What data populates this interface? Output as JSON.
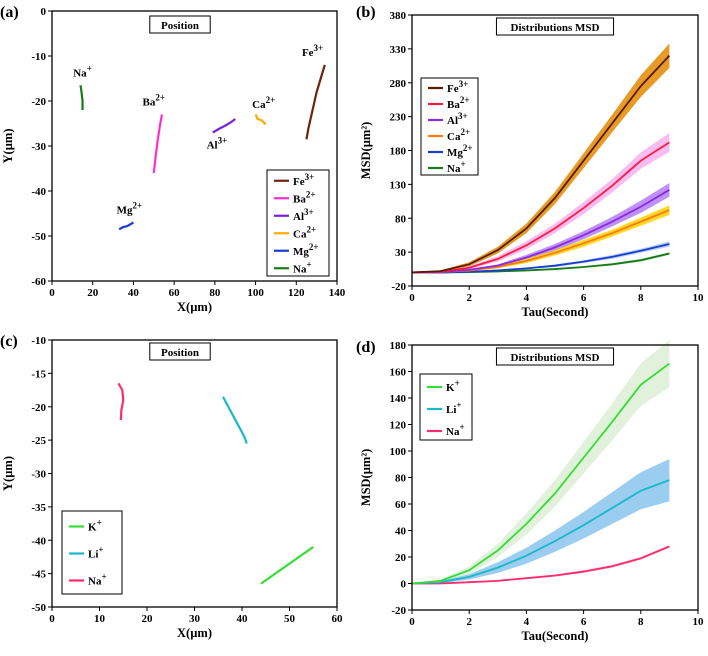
{
  "chart_data": [
    {
      "panel": "(a)",
      "type": "line",
      "title": "Position",
      "xlabel": "X(µm)",
      "ylabel": "Y(µm)",
      "xlim": [
        0,
        140
      ],
      "xticks": [
        0,
        20,
        40,
        60,
        80,
        100,
        120,
        140
      ],
      "ylim": [
        -60,
        0
      ],
      "yticks": [
        0,
        -10,
        -20,
        -30,
        -40,
        -50,
        -60
      ],
      "legend_position": "bottom-right",
      "series": [
        {
          "name": "Fe",
          "sup": "3+",
          "color": "#6b2410",
          "x": [
            125,
            126,
            128,
            130,
            132,
            134
          ],
          "y": [
            -28.5,
            -26,
            -22,
            -18,
            -15,
            -12
          ]
        },
        {
          "name": "Ba",
          "sup": "2+",
          "color": "#ff2fcf",
          "x": [
            50,
            51,
            52,
            53,
            54
          ],
          "y": [
            -36,
            -32,
            -28.5,
            -25.5,
            -23
          ]
        },
        {
          "name": "Al",
          "sup": "3+",
          "color": "#7a22d6",
          "x": [
            79,
            82,
            85,
            88,
            90
          ],
          "y": [
            -27,
            -26.2,
            -25.5,
            -24.7,
            -24
          ]
        },
        {
          "name": "Ca",
          "sup": "2+",
          "color": "#ffaa00",
          "x": [
            100,
            101,
            103,
            105
          ],
          "y": [
            -23,
            -24,
            -24.3,
            -25.2
          ]
        },
        {
          "name": "Mg",
          "sup": "2+",
          "color": "#1a3cd0",
          "x": [
            33,
            35,
            37,
            40
          ],
          "y": [
            -48.5,
            -48,
            -47.8,
            -47
          ]
        },
        {
          "name": "Na",
          "sup": "+",
          "color": "#187a18",
          "x": [
            14,
            14.5,
            15,
            15
          ],
          "y": [
            -16.5,
            -18,
            -20,
            -22
          ]
        }
      ],
      "annotations": [
        {
          "name": "Fe",
          "sup": "3+",
          "x": 128,
          "y": -10
        },
        {
          "name": "Ba",
          "sup": "2+",
          "x": 50,
          "y": -21
        },
        {
          "name": "Al",
          "sup": "3+",
          "x": 81,
          "y": -30.5
        },
        {
          "name": "Ca",
          "sup": "2+",
          "x": 104,
          "y": -21.5
        },
        {
          "name": "Mg",
          "sup": "2+",
          "x": 38,
          "y": -45
        },
        {
          "name": "Na",
          "sup": "+",
          "x": 15,
          "y": -14.5
        }
      ]
    },
    {
      "panel": "(b)",
      "type": "line",
      "title": "Distributions MSD",
      "xlabel": "Tau(Second)",
      "ylabel": "MSD(µm²)",
      "xlim": [
        0,
        10
      ],
      "xticks": [
        0,
        2,
        4,
        6,
        8,
        10
      ],
      "ylim": [
        -20,
        380
      ],
      "yticks": [
        -20,
        30,
        80,
        130,
        180,
        230,
        280,
        330,
        380
      ],
      "legend_position": "upper-left",
      "x": [
        0,
        1,
        2,
        3,
        4,
        5,
        6,
        7,
        8,
        9
      ],
      "series": [
        {
          "name": "Fe",
          "sup": "3+",
          "color": "#5a1a08",
          "band_color": "#e08a00",
          "values": [
            0,
            2,
            12,
            33,
            65,
            110,
            165,
            220,
            275,
            320
          ],
          "err": [
            0,
            1,
            3,
            5,
            7,
            9,
            11,
            13,
            16,
            18
          ]
        },
        {
          "name": "Ba",
          "sup": "2+",
          "color": "#ff1a40",
          "band_color": "#f6b0ee",
          "values": [
            0,
            1,
            7,
            20,
            40,
            65,
            95,
            128,
            165,
            192
          ],
          "err": [
            0,
            1,
            2,
            4,
            6,
            7,
            9,
            10,
            12,
            14
          ]
        },
        {
          "name": "Al",
          "sup": "3+",
          "color": "#8a2be2",
          "band_color": "#b47cf5",
          "values": [
            0,
            0.5,
            4,
            10,
            22,
            37,
            55,
            75,
            97,
            122
          ],
          "err": [
            0,
            0.5,
            1,
            2,
            4,
            5,
            6,
            7,
            9,
            10
          ]
        },
        {
          "name": "Ca",
          "sup": "2+",
          "color": "#ff7a10",
          "band_color": "#ffd000",
          "values": [
            0,
            0.5,
            3,
            8,
            17,
            29,
            43,
            58,
            75,
            92
          ],
          "err": [
            0,
            0.5,
            1,
            2,
            3,
            4,
            5,
            5,
            6,
            7
          ]
        },
        {
          "name": "Mg",
          "sup": "2+",
          "color": "#1a3cd0",
          "band_color": "#a8c8f0",
          "values": [
            0,
            0,
            1,
            3,
            6,
            10,
            16,
            23,
            32,
            42
          ],
          "err": [
            0,
            0,
            0.5,
            1,
            1,
            2,
            2,
            3,
            3,
            4
          ]
        },
        {
          "name": "Na",
          "sup": "+",
          "color": "#187a18",
          "band_color": "#9ccf9c",
          "values": [
            0,
            0,
            0.5,
            1.5,
            3,
            5,
            8,
            12,
            18,
            28
          ],
          "err": [
            0,
            0,
            0,
            0.5,
            0.5,
            1,
            1,
            1.5,
            2,
            2
          ]
        }
      ]
    },
    {
      "panel": "(c)",
      "type": "line",
      "title": "Position",
      "xlabel": "X(µm)",
      "ylabel": "Y(µm)",
      "xlim": [
        0,
        60
      ],
      "xticks": [
        0,
        10,
        20,
        30,
        40,
        50,
        60
      ],
      "ylim": [
        -50,
        -10
      ],
      "yticks": [
        -10,
        -15,
        -20,
        -25,
        -30,
        -35,
        -40,
        -45,
        -50
      ],
      "legend_position": "bottom-left",
      "series": [
        {
          "name": "K",
          "sup": "+",
          "color": "#33dd33",
          "x": [
            44,
            47,
            50,
            53,
            55
          ],
          "y": [
            -46.5,
            -45,
            -43.5,
            -42,
            -41
          ]
        },
        {
          "name": "Li",
          "sup": "+",
          "color": "#1ab8c8",
          "x": [
            36,
            37.5,
            39,
            40.5,
            41
          ],
          "y": [
            -18.5,
            -20.5,
            -22.5,
            -24.5,
            -25.5
          ]
        },
        {
          "name": "Na",
          "sup": "+",
          "color": "#ff2a6a",
          "x": [
            14,
            14.8,
            15,
            14.6,
            14.5
          ],
          "y": [
            -16.5,
            -17.5,
            -19,
            -20.5,
            -22
          ]
        }
      ]
    },
    {
      "panel": "(d)",
      "type": "line",
      "title": "Distributions MSD",
      "xlabel": "Tau(Second)",
      "ylabel": "MSD(µm²)",
      "xlim": [
        0,
        10
      ],
      "xticks": [
        0,
        2,
        4,
        6,
        8,
        10
      ],
      "ylim": [
        -20,
        180
      ],
      "yticks": [
        -20,
        0,
        20,
        40,
        60,
        80,
        100,
        120,
        140,
        160,
        180
      ],
      "legend_position": "upper-left",
      "x": [
        0,
        1,
        2,
        3,
        4,
        5,
        6,
        7,
        8,
        9
      ],
      "series": [
        {
          "name": "K",
          "sup": "+",
          "color": "#33dd33",
          "band_color": "#dcefd6",
          "values": [
            0,
            2,
            10,
            25,
            45,
            68,
            95,
            122,
            150,
            166
          ],
          "err": [
            0,
            1,
            3,
            5,
            8,
            10,
            12,
            14,
            16,
            18
          ]
        },
        {
          "name": "Li",
          "sup": "+",
          "color": "#1ab8c8",
          "band_color": "#88c4ec",
          "values": [
            0,
            1,
            5,
            12,
            21,
            32,
            44,
            57,
            70,
            78
          ],
          "err": [
            0,
            1,
            2,
            4,
            6,
            8,
            10,
            12,
            14,
            16
          ]
        },
        {
          "name": "Na",
          "sup": "+",
          "color": "#ff2a6a",
          "band_color": "#ffb0c8",
          "values": [
            0,
            0,
            1,
            2,
            4,
            6,
            9,
            13,
            19,
            28
          ],
          "err": [
            0,
            0,
            0,
            0.5,
            0.5,
            0.5,
            1,
            1,
            1,
            1
          ]
        }
      ]
    }
  ]
}
